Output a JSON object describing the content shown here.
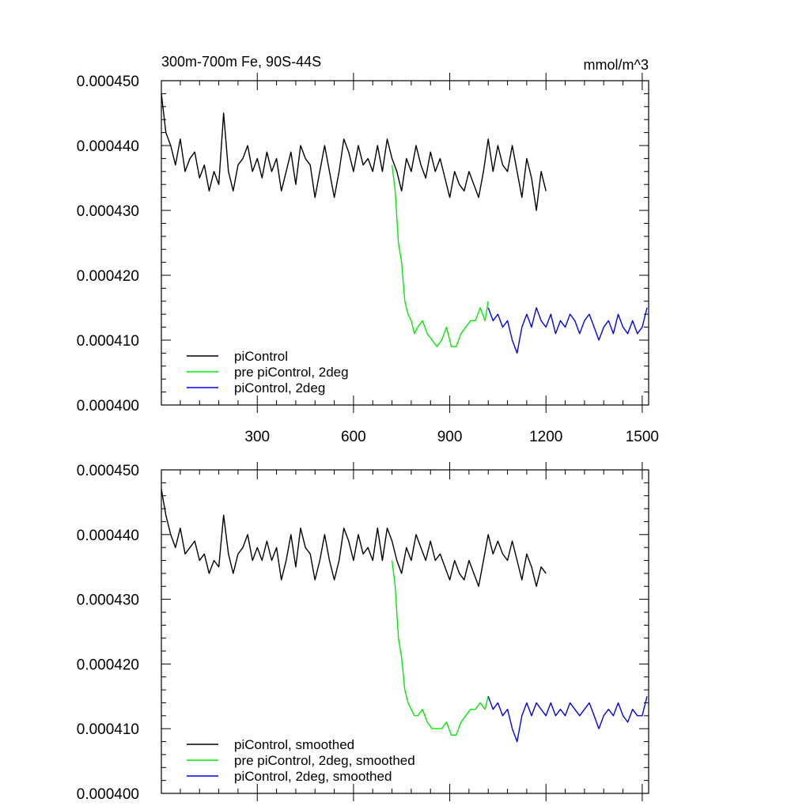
{
  "chart_data": [
    {
      "type": "line",
      "title_left": "300m-700m Fe, 90S-44S",
      "title_right": "mmol/m^3",
      "xlabel": "",
      "ylabel": "",
      "xlim": [
        1,
        1520
      ],
      "ylim": [
        0.0004,
        0.00045
      ],
      "yticks": [
        0.0004,
        0.00041,
        0.00042,
        0.00043,
        0.00044,
        0.00045
      ],
      "ytick_labels": [
        "0.000400",
        "0.000410",
        "0.000420",
        "0.000430",
        "0.000440",
        "0.000450"
      ],
      "xticks": [
        300,
        600,
        900,
        1200,
        1500
      ],
      "xtick_labels": [
        "300",
        "600",
        "900",
        "1200",
        "1500"
      ],
      "legend_position": "bottom-left",
      "series": [
        {
          "name": "piControl",
          "color": "#000000",
          "x": [
            1,
            15,
            30,
            45,
            60,
            75,
            90,
            105,
            120,
            135,
            150,
            165,
            180,
            195,
            210,
            225,
            240,
            255,
            270,
            285,
            300,
            315,
            330,
            345,
            360,
            375,
            390,
            405,
            420,
            435,
            450,
            465,
            480,
            495,
            510,
            525,
            540,
            555,
            570,
            585,
            600,
            615,
            630,
            645,
            660,
            675,
            690,
            705,
            720,
            735,
            750,
            765,
            780,
            795,
            810,
            825,
            840,
            855,
            870,
            885,
            900,
            915,
            930,
            945,
            960,
            975,
            990,
            1005,
            1020,
            1035,
            1050,
            1065,
            1080,
            1095,
            1110,
            1125,
            1140,
            1155,
            1170,
            1185,
            1200
          ],
          "values": [
            0.000448,
            0.000442,
            0.00044,
            0.000437,
            0.000441,
            0.000436,
            0.000438,
            0.000439,
            0.000435,
            0.000437,
            0.000433,
            0.000436,
            0.000434,
            0.000445,
            0.000436,
            0.000433,
            0.000437,
            0.000438,
            0.00044,
            0.000436,
            0.000438,
            0.000435,
            0.000439,
            0.000436,
            0.000438,
            0.000433,
            0.000436,
            0.000439,
            0.000434,
            0.00044,
            0.000438,
            0.000437,
            0.000432,
            0.000436,
            0.00044,
            0.000436,
            0.000432,
            0.000436,
            0.000441,
            0.000439,
            0.000436,
            0.00044,
            0.000437,
            0.000438,
            0.000436,
            0.00044,
            0.000436,
            0.000441,
            0.000438,
            0.000436,
            0.000433,
            0.000438,
            0.000436,
            0.00044,
            0.000437,
            0.000435,
            0.000439,
            0.000436,
            0.000438,
            0.000435,
            0.000432,
            0.000436,
            0.000434,
            0.000433,
            0.000436,
            0.000434,
            0.000432,
            0.000436,
            0.000441,
            0.000436,
            0.00044,
            0.000437,
            0.000436,
            0.00044,
            0.000436,
            0.000432,
            0.000438,
            0.000435,
            0.00043,
            0.000436,
            0.000433
          ]
        },
        {
          "name": "pre piControl, 2deg",
          "color": "#00ee00",
          "x": [
            720,
            730,
            740,
            750,
            760,
            770,
            780,
            790,
            800,
            815,
            830,
            845,
            860,
            875,
            890,
            905,
            920,
            935,
            950,
            965,
            980,
            995,
            1010,
            1020
          ],
          "values": [
            0.000437,
            0.000433,
            0.000425,
            0.000422,
            0.000416,
            0.000414,
            0.000413,
            0.000411,
            0.000412,
            0.000413,
            0.000411,
            0.00041,
            0.000409,
            0.00041,
            0.000412,
            0.000409,
            0.000409,
            0.000411,
            0.000412,
            0.000413,
            0.000413,
            0.000415,
            0.000413,
            0.000416
          ]
        },
        {
          "name": "piControl, 2deg",
          "color": "#0000ff",
          "x": [
            1020,
            1035,
            1050,
            1065,
            1080,
            1095,
            1110,
            1125,
            1140,
            1155,
            1170,
            1185,
            1200,
            1215,
            1230,
            1245,
            1260,
            1275,
            1290,
            1305,
            1320,
            1335,
            1350,
            1365,
            1380,
            1395,
            1410,
            1425,
            1440,
            1455,
            1470,
            1485,
            1500,
            1515
          ],
          "values": [
            0.000415,
            0.000413,
            0.000414,
            0.000412,
            0.000413,
            0.00041,
            0.000408,
            0.000412,
            0.000414,
            0.000412,
            0.000415,
            0.000413,
            0.000412,
            0.000414,
            0.000411,
            0.000413,
            0.000412,
            0.000414,
            0.000413,
            0.000411,
            0.000413,
            0.000414,
            0.000412,
            0.00041,
            0.000412,
            0.000413,
            0.000411,
            0.000414,
            0.000412,
            0.000411,
            0.000413,
            0.000411,
            0.000412,
            0.000415
          ]
        }
      ]
    },
    {
      "type": "line",
      "title_left": "",
      "title_right": "",
      "xlabel": "",
      "ylabel": "",
      "xlim": [
        1,
        1520
      ],
      "ylim": [
        0.0004,
        0.00045
      ],
      "yticks": [
        0.0004,
        0.00041,
        0.00042,
        0.00043,
        0.00044,
        0.00045
      ],
      "ytick_labels": [
        "0.000400",
        "0.000410",
        "0.000420",
        "0.000430",
        "0.000440",
        "0.000450"
      ],
      "xticks": [
        300,
        600,
        900,
        1200,
        1500
      ],
      "xtick_labels": [],
      "legend_position": "bottom-left",
      "series": [
        {
          "name": "piControl, smoothed",
          "color": "#000000",
          "x": [
            1,
            15,
            30,
            45,
            60,
            75,
            90,
            105,
            120,
            135,
            150,
            165,
            180,
            195,
            210,
            225,
            240,
            255,
            270,
            285,
            300,
            315,
            330,
            345,
            360,
            375,
            390,
            405,
            420,
            435,
            450,
            465,
            480,
            495,
            510,
            525,
            540,
            555,
            570,
            585,
            600,
            615,
            630,
            645,
            660,
            675,
            690,
            705,
            720,
            735,
            750,
            765,
            780,
            795,
            810,
            825,
            840,
            855,
            870,
            885,
            900,
            915,
            930,
            945,
            960,
            975,
            990,
            1005,
            1020,
            1035,
            1050,
            1065,
            1080,
            1095,
            1110,
            1125,
            1140,
            1155,
            1170,
            1185,
            1200
          ],
          "values": [
            0.000447,
            0.000443,
            0.00044,
            0.000438,
            0.000441,
            0.000437,
            0.000438,
            0.000439,
            0.000436,
            0.000437,
            0.000434,
            0.000436,
            0.000435,
            0.000443,
            0.000437,
            0.000434,
            0.000437,
            0.000438,
            0.00044,
            0.000436,
            0.000438,
            0.000436,
            0.000439,
            0.000436,
            0.000438,
            0.000433,
            0.000436,
            0.00044,
            0.000435,
            0.000441,
            0.000438,
            0.000437,
            0.000433,
            0.000436,
            0.00044,
            0.000436,
            0.000433,
            0.000436,
            0.000441,
            0.000439,
            0.000436,
            0.00044,
            0.000437,
            0.000438,
            0.000436,
            0.000441,
            0.000436,
            0.000441,
            0.000439,
            0.000436,
            0.000434,
            0.000438,
            0.000436,
            0.00044,
            0.000438,
            0.000436,
            0.000439,
            0.000436,
            0.000437,
            0.000435,
            0.000433,
            0.000436,
            0.000434,
            0.000433,
            0.000436,
            0.000434,
            0.000432,
            0.000436,
            0.00044,
            0.000437,
            0.000439,
            0.000437,
            0.000436,
            0.000439,
            0.000436,
            0.000433,
            0.000437,
            0.000435,
            0.000432,
            0.000435,
            0.000434
          ]
        },
        {
          "name": "pre piControl, 2deg, smoothed",
          "color": "#00ee00",
          "x": [
            720,
            730,
            740,
            750,
            760,
            770,
            780,
            790,
            800,
            815,
            830,
            845,
            860,
            875,
            890,
            905,
            920,
            935,
            950,
            965,
            980,
            995,
            1010,
            1020
          ],
          "values": [
            0.000436,
            0.000432,
            0.000424,
            0.000421,
            0.000416,
            0.000414,
            0.000413,
            0.000412,
            0.000412,
            0.000413,
            0.000411,
            0.00041,
            0.00041,
            0.00041,
            0.000411,
            0.000409,
            0.000409,
            0.000411,
            0.000412,
            0.000413,
            0.000413,
            0.000414,
            0.000413,
            0.000415
          ]
        },
        {
          "name": "piControl, 2deg, smoothed",
          "color": "#0000ff",
          "x": [
            1020,
            1035,
            1050,
            1065,
            1080,
            1095,
            1110,
            1125,
            1140,
            1155,
            1170,
            1185,
            1200,
            1215,
            1230,
            1245,
            1260,
            1275,
            1290,
            1305,
            1320,
            1335,
            1350,
            1365,
            1380,
            1395,
            1410,
            1425,
            1440,
            1455,
            1470,
            1485,
            1500,
            1515
          ],
          "values": [
            0.000415,
            0.000413,
            0.000414,
            0.000412,
            0.000413,
            0.00041,
            0.000408,
            0.000412,
            0.000414,
            0.000412,
            0.000414,
            0.000413,
            0.000412,
            0.000414,
            0.000412,
            0.000413,
            0.000412,
            0.000414,
            0.000413,
            0.000412,
            0.000413,
            0.000414,
            0.000412,
            0.00041,
            0.000412,
            0.000413,
            0.000412,
            0.000414,
            0.000412,
            0.000411,
            0.000413,
            0.000412,
            0.000412,
            0.000415
          ]
        }
      ]
    }
  ]
}
